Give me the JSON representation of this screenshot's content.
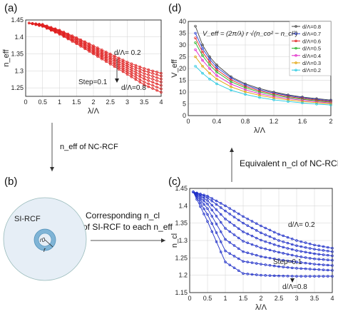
{
  "panels": {
    "a": {
      "label": "(a)"
    },
    "b": {
      "label": "(b)"
    },
    "c": {
      "label": "(c)"
    },
    "d": {
      "label": "(d)"
    }
  },
  "flow": {
    "a_to_b": "n_eff of NC-RCF",
    "b_to_c_line1": "Corresponding n_cl",
    "b_to_c_line2": "of SI-RCF to each n_eff",
    "c_to_d": "Equivalent n_cl of NC-RCF"
  },
  "fiber_diagram": {
    "title": "SI-RCF",
    "r0": "r0",
    "r": "r"
  },
  "colors": {
    "red": "#e02020",
    "blue": "#2030c8",
    "fiber_outer": "#e6eef6",
    "fiber_ring": "#7fb4d6"
  },
  "chart_data": [
    {
      "id": "a",
      "type": "line",
      "xlabel": "λ/Λ",
      "ylabel": "n_eff",
      "xticks": [
        "0",
        "0.5",
        "1",
        "1.5",
        "2",
        "2.5",
        "3",
        "3.5",
        "4"
      ],
      "yticks": [
        "1.25",
        "1.3",
        "1.35",
        "1.4",
        "1.45"
      ],
      "xlim": [
        0,
        4
      ],
      "ylim": [
        1.225,
        1.45
      ],
      "annotations": [
        "d/Λ= 0.2",
        "Step=0.1",
        "d/Λ=0.8"
      ],
      "x": [
        0.1,
        0.5,
        1.0,
        1.5,
        2.0,
        2.5,
        3.0,
        3.5,
        4.0
      ],
      "series": [
        {
          "values": [
            1.441,
            1.437,
            1.42,
            1.398,
            1.374,
            1.35,
            1.326,
            1.307,
            1.293
          ]
        },
        {
          "values": [
            1.441,
            1.436,
            1.418,
            1.395,
            1.37,
            1.345,
            1.32,
            1.3,
            1.285
          ]
        },
        {
          "values": [
            1.441,
            1.435,
            1.416,
            1.392,
            1.366,
            1.34,
            1.314,
            1.292,
            1.276
          ]
        },
        {
          "values": [
            1.441,
            1.434,
            1.414,
            1.389,
            1.362,
            1.335,
            1.308,
            1.284,
            1.267
          ]
        },
        {
          "values": [
            1.441,
            1.433,
            1.412,
            1.386,
            1.358,
            1.33,
            1.302,
            1.276,
            1.257
          ]
        },
        {
          "values": [
            1.441,
            1.432,
            1.41,
            1.383,
            1.354,
            1.325,
            1.296,
            1.267,
            1.247
          ]
        },
        {
          "values": [
            1.441,
            1.431,
            1.408,
            1.38,
            1.35,
            1.32,
            1.29,
            1.259,
            1.237
          ]
        }
      ]
    },
    {
      "id": "d",
      "type": "line",
      "xlabel": "λ/Λ",
      "ylabel": "V_eff",
      "xticks": [
        "0",
        "0.4",
        "0.8",
        "1.2",
        "1.6",
        "2"
      ],
      "yticks": [
        "0",
        "5",
        "10",
        "15",
        "20",
        "25",
        "30",
        "35",
        "40"
      ],
      "xlim": [
        0,
        2
      ],
      "ylim": [
        0,
        40
      ],
      "equation": "V_eff = (2π/λ) r √(n_co² − n_cl²)",
      "legend_position": "top-right",
      "x": [
        0.1,
        0.2,
        0.3,
        0.4,
        0.6,
        0.8,
        1.0,
        1.2,
        1.4,
        1.6,
        1.8,
        2.0
      ],
      "series": [
        {
          "name": "d/Λ=0.8",
          "color": "#404040",
          "values": [
            38,
            30,
            25,
            21.5,
            16.5,
            13.5,
            11.5,
            10,
            8.8,
            7.9,
            7.2,
            6.6
          ]
        },
        {
          "name": "d/Λ=0.7",
          "color": "#2a3fd6",
          "values": [
            35,
            28.5,
            24,
            20.5,
            16,
            13,
            11,
            9.6,
            8.5,
            7.6,
            6.9,
            6.3
          ]
        },
        {
          "name": "d/Λ=0.6",
          "color": "#e02020",
          "values": [
            33,
            27,
            22.8,
            19.5,
            15.2,
            12.4,
            10.5,
            9.2,
            8.1,
            7.3,
            6.6,
            6.0
          ]
        },
        {
          "name": "d/Λ=0.5",
          "color": "#20b020",
          "values": [
            31,
            25.5,
            21.5,
            18.5,
            14.4,
            11.8,
            10,
            8.7,
            7.7,
            6.9,
            6.3,
            5.7
          ]
        },
        {
          "name": "d/Λ=0.4",
          "color": "#e020c8",
          "values": [
            28,
            23.5,
            20,
            17,
            13.4,
            11,
            9.3,
            8.1,
            7.2,
            6.5,
            5.9,
            5.4
          ]
        },
        {
          "name": "d/Λ=0.3",
          "color": "#e0a000",
          "values": [
            25,
            21,
            18,
            15.5,
            12.2,
            10.1,
            8.6,
            7.5,
            6.7,
            6.0,
            5.5,
            5.0
          ]
        },
        {
          "name": "d/Λ=0.2",
          "color": "#20c8e0",
          "values": [
            21,
            18,
            15.5,
            13.5,
            10.8,
            9,
            7.7,
            6.7,
            6.0,
            5.4,
            4.9,
            4.5
          ]
        }
      ]
    },
    {
      "id": "c",
      "type": "line",
      "xlabel": "λ/Λ",
      "ylabel": "n_cl",
      "xticks": [
        "0",
        "0.5",
        "1",
        "1.5",
        "2",
        "2.5",
        "3",
        "3.5",
        "4"
      ],
      "yticks": [
        "1.15",
        "1.2",
        "1.25",
        "1.3",
        "1.35",
        "1.4",
        "1.45"
      ],
      "xlim": [
        0,
        4
      ],
      "ylim": [
        1.15,
        1.45
      ],
      "annotations": [
        "d/Λ= 0.2",
        "Step=0.1",
        "d/Λ=0.8"
      ],
      "x": [
        0.1,
        0.5,
        1.0,
        1.5,
        2.0,
        2.5,
        3.0,
        3.5,
        4.0
      ],
      "series": [
        {
          "values": [
            1.44,
            1.428,
            1.4,
            1.369,
            1.342,
            1.318,
            1.3,
            1.287,
            1.278
          ]
        },
        {
          "values": [
            1.44,
            1.423,
            1.385,
            1.35,
            1.322,
            1.3,
            1.285,
            1.275,
            1.268
          ]
        },
        {
          "values": [
            1.44,
            1.415,
            1.362,
            1.325,
            1.301,
            1.284,
            1.271,
            1.262,
            1.256
          ]
        },
        {
          "values": [
            1.44,
            1.405,
            1.335,
            1.298,
            1.279,
            1.266,
            1.255,
            1.247,
            1.243
          ]
        },
        {
          "values": [
            1.44,
            1.392,
            1.303,
            1.268,
            1.254,
            1.245,
            1.238,
            1.232,
            1.228
          ]
        },
        {
          "values": [
            1.44,
            1.375,
            1.27,
            1.24,
            1.232,
            1.225,
            1.22,
            1.217,
            1.214
          ]
        },
        {
          "values": [
            1.44,
            1.355,
            1.238,
            1.205,
            1.2,
            1.198,
            1.197,
            1.197,
            1.197
          ]
        }
      ]
    }
  ]
}
